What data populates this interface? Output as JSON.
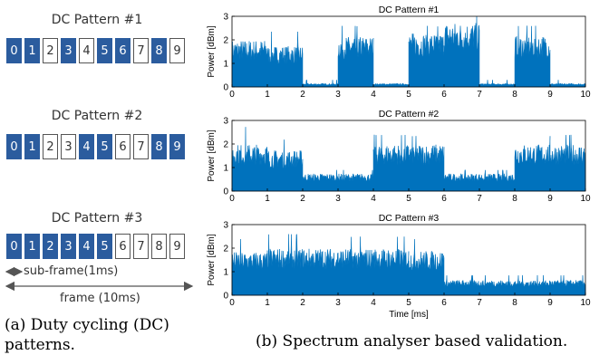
{
  "patterns": [
    {
      "title": "DC Pattern #1",
      "cells": [
        "0",
        "1",
        "2",
        "3",
        "4",
        "5",
        "6",
        "7",
        "8",
        "9"
      ],
      "active": [
        1,
        1,
        0,
        1,
        0,
        1,
        1,
        0,
        1,
        0
      ]
    },
    {
      "title": "DC Pattern #2",
      "cells": [
        "0",
        "1",
        "2",
        "3",
        "4",
        "5",
        "6",
        "7",
        "8",
        "9"
      ],
      "active": [
        1,
        1,
        0,
        0,
        1,
        1,
        0,
        0,
        1,
        1
      ]
    },
    {
      "title": "DC Pattern #3",
      "cells": [
        "0",
        "1",
        "2",
        "3",
        "4",
        "5",
        "6",
        "7",
        "8",
        "9"
      ],
      "active": [
        1,
        1,
        1,
        1,
        1,
        1,
        0,
        0,
        0,
        0
      ]
    }
  ],
  "annotations": {
    "subframe": "sub-frame(1ms)",
    "frame": "frame (10ms)"
  },
  "captions": {
    "a": "(a) Duty cycling (DC) patterns.",
    "b": "(b) Spectrum analyser based validation."
  },
  "colors": {
    "active_cell": "#2b5c9e",
    "signal": "#0072bd"
  },
  "chart_data": [
    {
      "type": "area",
      "title": "DC Pattern #1",
      "xlabel": "",
      "ylabel": "Power [dBm]",
      "xlim": [
        0,
        10
      ],
      "ylim": [
        0,
        3
      ],
      "xticks": [
        "0",
        "1",
        "2",
        "3",
        "4",
        "5",
        "6",
        "7",
        "8",
        "9",
        "10"
      ],
      "yticks": [
        "0",
        "1",
        "2",
        "3"
      ],
      "series": [
        {
          "segments": [
            {
              "x": [
                0,
                1
              ],
              "level": 2.0,
              "peak": 2.75
            },
            {
              "x": [
                1,
                2
              ],
              "level": 1.75,
              "peak": 2.35
            },
            {
              "x": [
                2,
                3
              ],
              "level": 0.15,
              "peak": 0.3
            },
            {
              "x": [
                3,
                4
              ],
              "level": 2.15,
              "peak": 2.6
            },
            {
              "x": [
                4,
                5
              ],
              "level": 0.15,
              "peak": 0.3
            },
            {
              "x": [
                5,
                6
              ],
              "level": 2.3,
              "peak": 2.6
            },
            {
              "x": [
                6,
                7
              ],
              "level": 2.75,
              "peak": 3.0
            },
            {
              "x": [
                7,
                8
              ],
              "level": 0.15,
              "peak": 0.3
            },
            {
              "x": [
                8,
                9
              ],
              "level": 2.2,
              "peak": 2.6
            },
            {
              "x": [
                9,
                10
              ],
              "level": 0.15,
              "peak": 0.3
            }
          ]
        }
      ],
      "grid": false
    },
    {
      "type": "area",
      "title": "DC Pattern #2",
      "xlabel": "",
      "ylabel": "Power [dBm]",
      "xlim": [
        0,
        10
      ],
      "ylim": [
        0,
        3
      ],
      "xticks": [
        "0",
        "1",
        "2",
        "3",
        "4",
        "5",
        "6",
        "7",
        "8",
        "9",
        "10"
      ],
      "yticks": [
        "0",
        "1",
        "2",
        "3"
      ],
      "series": [
        {
          "segments": [
            {
              "x": [
                0,
                1
              ],
              "level": 2.0,
              "peak": 2.75
            },
            {
              "x": [
                1,
                2
              ],
              "level": 1.75,
              "peak": 2.2
            },
            {
              "x": [
                2,
                3
              ],
              "level": 0.75,
              "peak": 0.9
            },
            {
              "x": [
                3,
                4
              ],
              "level": 0.75,
              "peak": 0.9
            },
            {
              "x": [
                4,
                5
              ],
              "level": 2.0,
              "peak": 2.4
            },
            {
              "x": [
                5,
                6
              ],
              "level": 2.0,
              "peak": 2.35
            },
            {
              "x": [
                6,
                7
              ],
              "level": 0.75,
              "peak": 0.9
            },
            {
              "x": [
                7,
                8
              ],
              "level": 0.75,
              "peak": 0.9
            },
            {
              "x": [
                8,
                9
              ],
              "level": 2.0,
              "peak": 2.35
            },
            {
              "x": [
                9,
                10
              ],
              "level": 2.0,
              "peak": 2.4
            }
          ]
        }
      ],
      "grid": false
    },
    {
      "type": "area",
      "title": "DC Pattern #3",
      "xlabel": "Time [ms]",
      "ylabel": "Power [dBm]",
      "xlim": [
        0,
        10
      ],
      "ylim": [
        0,
        3
      ],
      "xticks": [
        "0",
        "1",
        "2",
        "3",
        "4",
        "5",
        "6",
        "7",
        "8",
        "9",
        "10"
      ],
      "yticks": [
        "0",
        "1",
        "2",
        "3"
      ],
      "series": [
        {
          "segments": [
            {
              "x": [
                0,
                1
              ],
              "level": 1.85,
              "peak": 2.4
            },
            {
              "x": [
                1,
                2
              ],
              "level": 2.0,
              "peak": 2.6
            },
            {
              "x": [
                2,
                3
              ],
              "level": 2.0,
              "peak": 2.55
            },
            {
              "x": [
                3,
                4
              ],
              "level": 2.0,
              "peak": 2.5
            },
            {
              "x": [
                4,
                5
              ],
              "level": 2.0,
              "peak": 2.5
            },
            {
              "x": [
                5,
                6
              ],
              "level": 1.9,
              "peak": 2.4
            },
            {
              "x": [
                6,
                7
              ],
              "level": 0.65,
              "peak": 0.85
            },
            {
              "x": [
                7,
                8
              ],
              "level": 0.65,
              "peak": 0.85
            },
            {
              "x": [
                8,
                9
              ],
              "level": 0.65,
              "peak": 0.85
            },
            {
              "x": [
                9,
                10
              ],
              "level": 0.65,
              "peak": 0.85
            }
          ]
        }
      ],
      "grid": false
    }
  ]
}
